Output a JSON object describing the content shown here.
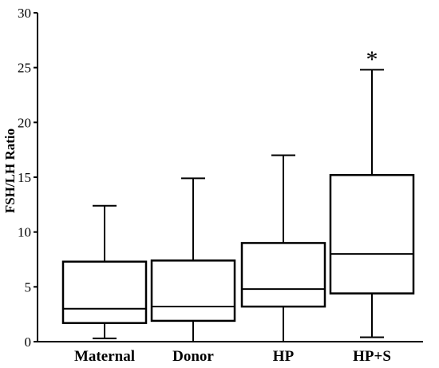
{
  "chart_data": {
    "type": "box",
    "title": "",
    "xlabel": "",
    "ylabel": "FSH/LH Ratio",
    "ylim": [
      0,
      30
    ],
    "yticks": [
      0,
      5,
      10,
      15,
      20,
      25,
      30
    ],
    "grid": false,
    "categories": [
      "Maternal",
      "Donor",
      "HP",
      "HP+S"
    ],
    "boxes": [
      {
        "min": 0.3,
        "q1": 1.7,
        "median": 3.0,
        "q3": 7.3,
        "max": 12.4
      },
      {
        "min": 0.0,
        "q1": 1.9,
        "median": 3.2,
        "q3": 7.4,
        "max": 14.9
      },
      {
        "min": 0.0,
        "q1": 3.2,
        "median": 4.8,
        "q3": 9.0,
        "max": 17.0
      },
      {
        "min": 0.4,
        "q1": 4.4,
        "median": 8.0,
        "q3": 15.2,
        "max": 24.8
      }
    ],
    "annotations": [
      {
        "category": "HP+S",
        "text": "*",
        "y": 26.2
      }
    ],
    "colors": {
      "stroke": "#000000",
      "background": "#ffffff"
    }
  }
}
